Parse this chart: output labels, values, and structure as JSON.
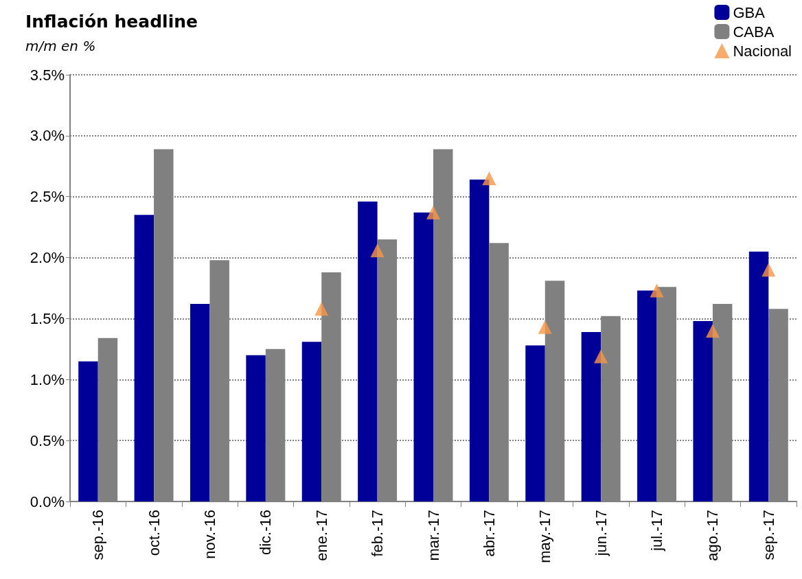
{
  "chart_data": {
    "type": "bar",
    "title": "Inflación headline",
    "subtitle": "m/m en %",
    "categories": [
      "sep.-16",
      "oct.-16",
      "nov.-16",
      "dic.-16",
      "ene.-17",
      "feb.-17",
      "mar.-17",
      "abr.-17",
      "may.-17",
      "jun.-17",
      "jul.-17",
      "ago.-17",
      "sep.-17"
    ],
    "series": [
      {
        "name": "GBA",
        "color": "#000099",
        "values": [
          1.15,
          2.35,
          1.62,
          1.2,
          1.31,
          2.46,
          2.37,
          2.64,
          1.28,
          1.39,
          1.73,
          1.48,
          2.05
        ]
      },
      {
        "name": "CABA",
        "color": "#808080",
        "values": [
          1.34,
          2.89,
          1.98,
          1.25,
          1.88,
          2.15,
          2.89,
          2.12,
          1.81,
          1.52,
          1.76,
          1.62,
          1.58
        ]
      },
      {
        "name": "Nacional",
        "type": "scatter",
        "marker": "triangle",
        "color": "#f79646",
        "values": [
          null,
          null,
          null,
          null,
          1.58,
          2.06,
          2.37,
          2.65,
          1.43,
          1.19,
          1.73,
          1.4,
          1.9
        ]
      }
    ],
    "ylim": [
      0,
      3.5
    ],
    "yticks": [
      {
        "value": 0,
        "label": "0.0%"
      },
      {
        "value": 0.5,
        "label": "0.5%"
      },
      {
        "value": 1,
        "label": "1.0%"
      },
      {
        "value": 1.5,
        "label": "1.5%"
      },
      {
        "value": 2,
        "label": "2.0%"
      },
      {
        "value": 2.5,
        "label": "2.5%"
      },
      {
        "value": 3,
        "label": "3.0%"
      },
      {
        "value": 3.5,
        "label": "3.5%"
      }
    ],
    "grid": "y",
    "legend": "top right"
  }
}
